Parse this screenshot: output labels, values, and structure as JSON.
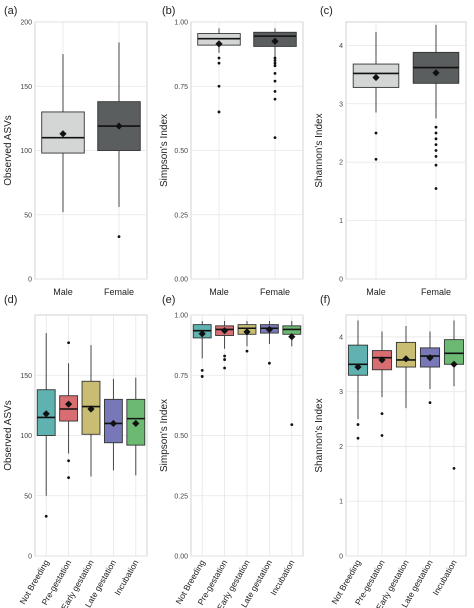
{
  "chart_data": [
    {
      "type": "box",
      "panel_label": "(a)",
      "ylabel": "Observed ASVs",
      "categories": [
        "Male",
        "Female"
      ],
      "ylim": [
        0,
        200
      ],
      "yticks": [
        "0",
        "50",
        "100",
        "150",
        "200"
      ],
      "grid": true,
      "boxes": [
        {
          "category": "Male",
          "color": "#d4d6d6",
          "whisker_low": 52,
          "q1": 98,
          "median": 110,
          "q3": 130,
          "whisker_high": 175,
          "mean": 113,
          "outliers": []
        },
        {
          "category": "Female",
          "color": "#5a5e5e",
          "whisker_low": 56,
          "q1": 100,
          "median": 119,
          "q3": 138,
          "whisker_high": 184,
          "mean": 119,
          "outliers": [
            33
          ]
        }
      ]
    },
    {
      "type": "box",
      "panel_label": "(b)",
      "ylabel": "Simpson's Index",
      "categories": [
        "Male",
        "Female"
      ],
      "ylim": [
        0,
        1
      ],
      "yticks": [
        "0.00",
        "0.25",
        "0.50",
        "0.75",
        "1.00"
      ],
      "grid": true,
      "boxes": [
        {
          "category": "Male",
          "color": "#d4d6d6",
          "whisker_low": 0.88,
          "q1": 0.91,
          "median": 0.935,
          "q3": 0.955,
          "whisker_high": 0.975,
          "mean": 0.915,
          "outliers": [
            0.86,
            0.84,
            0.75,
            0.65
          ]
        },
        {
          "category": "Female",
          "color": "#5a5e5e",
          "whisker_low": 0.86,
          "q1": 0.905,
          "median": 0.945,
          "q3": 0.96,
          "whisker_high": 0.975,
          "mean": 0.925,
          "outliers": [
            0.86,
            0.85,
            0.84,
            0.83,
            0.8,
            0.77,
            0.73,
            0.7,
            0.55
          ]
        }
      ]
    },
    {
      "type": "box",
      "panel_label": "(c)",
      "ylabel": "Shannon's Index",
      "categories": [
        "Male",
        "Female"
      ],
      "ylim": [
        0,
        4.4
      ],
      "yticks": [
        "0",
        "1",
        "2",
        "3",
        "4"
      ],
      "grid": true,
      "boxes": [
        {
          "category": "Male",
          "color": "#d4d6d6",
          "whisker_low": 2.85,
          "q1": 3.28,
          "median": 3.52,
          "q3": 3.68,
          "whisker_high": 4.23,
          "mean": 3.45,
          "outliers": [
            2.5,
            2.05
          ]
        },
        {
          "category": "Female",
          "color": "#5a5e5e",
          "whisker_low": 2.75,
          "q1": 3.35,
          "median": 3.62,
          "q3": 3.88,
          "whisker_high": 4.35,
          "mean": 3.53,
          "outliers": [
            2.6,
            2.5,
            2.4,
            2.3,
            2.2,
            2.1,
            1.95,
            1.55
          ]
        }
      ]
    },
    {
      "type": "box",
      "panel_label": "(d)",
      "ylabel": "Observed ASVs",
      "categories": [
        "Not Breeding",
        "Pre-gestation",
        "Early gestation",
        "Late gestation",
        "Incubation"
      ],
      "ylim": [
        0,
        200
      ],
      "yticks": [
        "0",
        "50",
        "100",
        "150"
      ],
      "grid": true,
      "boxes": [
        {
          "category": "Not Breeding",
          "color": "#5fb2b0",
          "whisker_low": 50,
          "q1": 100,
          "median": 115,
          "q3": 138,
          "whisker_high": 185,
          "mean": 118,
          "outliers": [
            33
          ]
        },
        {
          "category": "Pre-gestation",
          "color": "#d86e72",
          "whisker_low": 85,
          "q1": 112,
          "median": 122,
          "q3": 133,
          "whisker_high": 160,
          "mean": 126,
          "outliers": [
            177,
            79,
            65
          ]
        },
        {
          "category": "Early gestation",
          "color": "#c8bd72",
          "whisker_low": 66,
          "q1": 101,
          "median": 124,
          "q3": 145,
          "whisker_high": 175,
          "mean": 122,
          "outliers": []
        },
        {
          "category": "Late gestation",
          "color": "#7877b8",
          "whisker_low": 71,
          "q1": 94,
          "median": 110,
          "q3": 130,
          "whisker_high": 147,
          "mean": 110,
          "outliers": []
        },
        {
          "category": "Incubation",
          "color": "#6cba72",
          "whisker_low": 67,
          "q1": 92,
          "median": 114,
          "q3": 130,
          "whisker_high": 148,
          "mean": 110,
          "outliers": []
        }
      ]
    },
    {
      "type": "box",
      "panel_label": "(e)",
      "ylabel": "Simpson's Index",
      "categories": [
        "Not Breeding",
        "Pre-gestation",
        "Early gestation",
        "Late gestation",
        "Incubation"
      ],
      "ylim": [
        0,
        1
      ],
      "yticks": [
        "0.00",
        "0.25",
        "0.50",
        "0.75",
        "1.00"
      ],
      "grid": true,
      "boxes": [
        {
          "category": "Not Breeding",
          "color": "#5fb2b0",
          "whisker_low": 0.82,
          "q1": 0.905,
          "median": 0.935,
          "q3": 0.96,
          "whisker_high": 0.975,
          "mean": 0.922,
          "outliers": [
            0.77,
            0.745
          ]
        },
        {
          "category": "Pre-gestation",
          "color": "#d86e72",
          "whisker_low": 0.86,
          "q1": 0.915,
          "median": 0.94,
          "q3": 0.955,
          "whisker_high": 0.975,
          "mean": 0.935,
          "outliers": [
            0.83,
            0.815,
            0.78
          ]
        },
        {
          "category": "Early gestation",
          "color": "#c8bd72",
          "whisker_low": 0.87,
          "q1": 0.92,
          "median": 0.945,
          "q3": 0.96,
          "whisker_high": 0.975,
          "mean": 0.93,
          "outliers": [
            0.85
          ]
        },
        {
          "category": "Late gestation",
          "color": "#7877b8",
          "whisker_low": 0.88,
          "q1": 0.925,
          "median": 0.945,
          "q3": 0.96,
          "whisker_high": 0.975,
          "mean": 0.94,
          "outliers": [
            0.8
          ]
        },
        {
          "category": "Incubation",
          "color": "#6cba72",
          "whisker_low": 0.87,
          "q1": 0.92,
          "median": 0.94,
          "q3": 0.955,
          "whisker_high": 0.975,
          "mean": 0.91,
          "outliers": [
            0.545
          ]
        }
      ]
    },
    {
      "type": "box",
      "panel_label": "(f)",
      "ylabel": "Shannon's Index",
      "categories": [
        "Not Breeding",
        "Pre-gestation",
        "Early gestation",
        "Late gestation",
        "Incubation"
      ],
      "ylim": [
        0,
        4.4
      ],
      "yticks": [
        "0",
        "1",
        "2",
        "3",
        "4"
      ],
      "grid": true,
      "boxes": [
        {
          "category": "Not Breeding",
          "color": "#5fb2b0",
          "whisker_low": 2.5,
          "q1": 3.3,
          "median": 3.5,
          "q3": 3.85,
          "whisker_high": 4.3,
          "mean": 3.45,
          "outliers": [
            2.4,
            2.15
          ]
        },
        {
          "category": "Pre-gestation",
          "color": "#d86e72",
          "whisker_low": 2.9,
          "q1": 3.4,
          "median": 3.62,
          "q3": 3.75,
          "whisker_high": 4.1,
          "mean": 3.58,
          "outliers": [
            2.6,
            2.2
          ]
        },
        {
          "category": "Early gestation",
          "color": "#c8bd72",
          "whisker_low": 2.7,
          "q1": 3.45,
          "median": 3.58,
          "q3": 3.9,
          "whisker_high": 4.2,
          "mean": 3.6,
          "outliers": []
        },
        {
          "category": "Late gestation",
          "color": "#7877b8",
          "whisker_low": 3.05,
          "q1": 3.45,
          "median": 3.65,
          "q3": 3.8,
          "whisker_high": 4.1,
          "mean": 3.62,
          "outliers": [
            2.8
          ]
        },
        {
          "category": "Incubation",
          "color": "#6cba72",
          "whisker_low": 3.1,
          "q1": 3.5,
          "median": 3.7,
          "q3": 3.95,
          "whisker_high": 4.3,
          "mean": 3.5,
          "outliers": [
            1.6
          ]
        }
      ]
    }
  ]
}
